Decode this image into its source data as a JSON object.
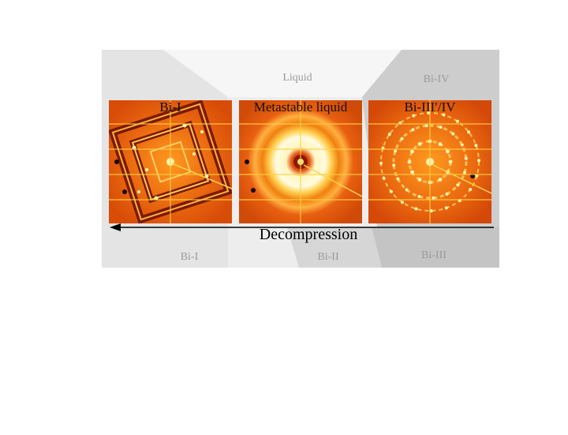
{
  "figure": {
    "region_labels": {
      "liquid": "Liquid",
      "bi_iv": "Bi-IV",
      "bi_i": "Bi-I",
      "bi_ii": "Bi-II",
      "bi_iii": "Bi-III"
    },
    "panels": [
      {
        "title": "Bi-I"
      },
      {
        "title": "Metastable liquid"
      },
      {
        "title": "Bi-III′/IV"
      }
    ],
    "arrow_label": "Decompression",
    "colors": {
      "pattern_dark": "#c23000",
      "pattern_mid": "#f07a10",
      "pattern_bright": "#ffe060",
      "grid_line": "#ffd040",
      "region_light": "#f1f1f1",
      "region_mid": "#dcdcdc",
      "region_dark": "#c6c6c6"
    }
  }
}
